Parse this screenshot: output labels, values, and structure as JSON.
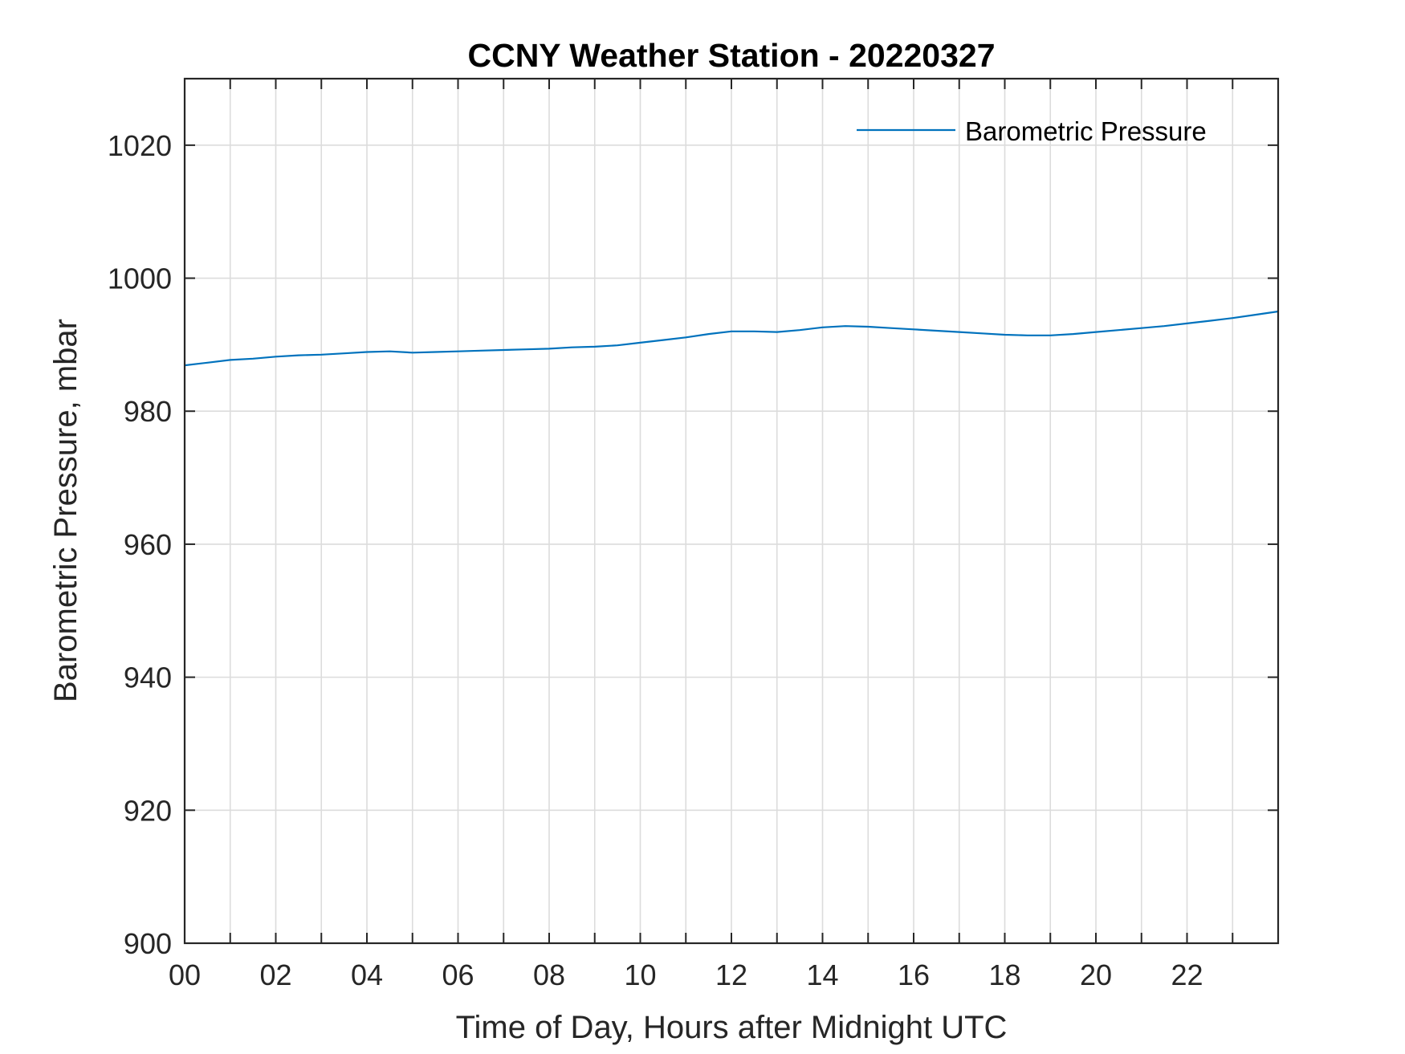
{
  "chart_data": {
    "type": "line",
    "title": "CCNY Weather Station - 20220327",
    "xlabel": "Time of Day, Hours after Midnight UTC",
    "ylabel": "Barometric Pressure, mbar",
    "xlim": [
      0,
      24
    ],
    "ylim": [
      900,
      1030
    ],
    "x_ticks": [
      0,
      2,
      4,
      6,
      8,
      10,
      12,
      14,
      16,
      18,
      20,
      22
    ],
    "x_tick_labels": [
      "00",
      "02",
      "04",
      "06",
      "08",
      "10",
      "12",
      "14",
      "16",
      "18",
      "20",
      "22"
    ],
    "y_ticks": [
      900,
      920,
      940,
      960,
      980,
      1000,
      1020
    ],
    "y_tick_labels": [
      "900",
      "920",
      "940",
      "960",
      "980",
      "1000",
      "1020"
    ],
    "grid": true,
    "legend_position": "top-right",
    "series": [
      {
        "name": "Barometric Pressure",
        "color": "#0072BD",
        "x": [
          0,
          0.5,
          1,
          1.5,
          2,
          2.5,
          3,
          3.5,
          4,
          4.5,
          5,
          5.5,
          6,
          6.5,
          7,
          7.5,
          8,
          8.5,
          9,
          9.5,
          10,
          10.5,
          11,
          11.5,
          12,
          12.5,
          13,
          13.5,
          14,
          14.5,
          15,
          15.5,
          16,
          16.5,
          17,
          17.5,
          18,
          18.5,
          19,
          19.5,
          20,
          20.5,
          21,
          21.5,
          22,
          22.5,
          23,
          23.5,
          24
        ],
        "y": [
          986.9,
          987.3,
          987.7,
          987.9,
          988.2,
          988.4,
          988.5,
          988.7,
          988.9,
          989.0,
          988.8,
          988.9,
          989.0,
          989.1,
          989.2,
          989.3,
          989.4,
          989.6,
          989.7,
          989.9,
          990.3,
          990.7,
          991.1,
          991.6,
          992.0,
          992.0,
          991.9,
          992.2,
          992.6,
          992.8,
          992.7,
          992.5,
          992.3,
          992.1,
          991.9,
          991.7,
          991.5,
          991.4,
          991.4,
          991.6,
          991.9,
          992.2,
          992.5,
          992.8,
          993.2,
          993.6,
          994.0,
          994.5,
          995.0
        ]
      }
    ]
  }
}
